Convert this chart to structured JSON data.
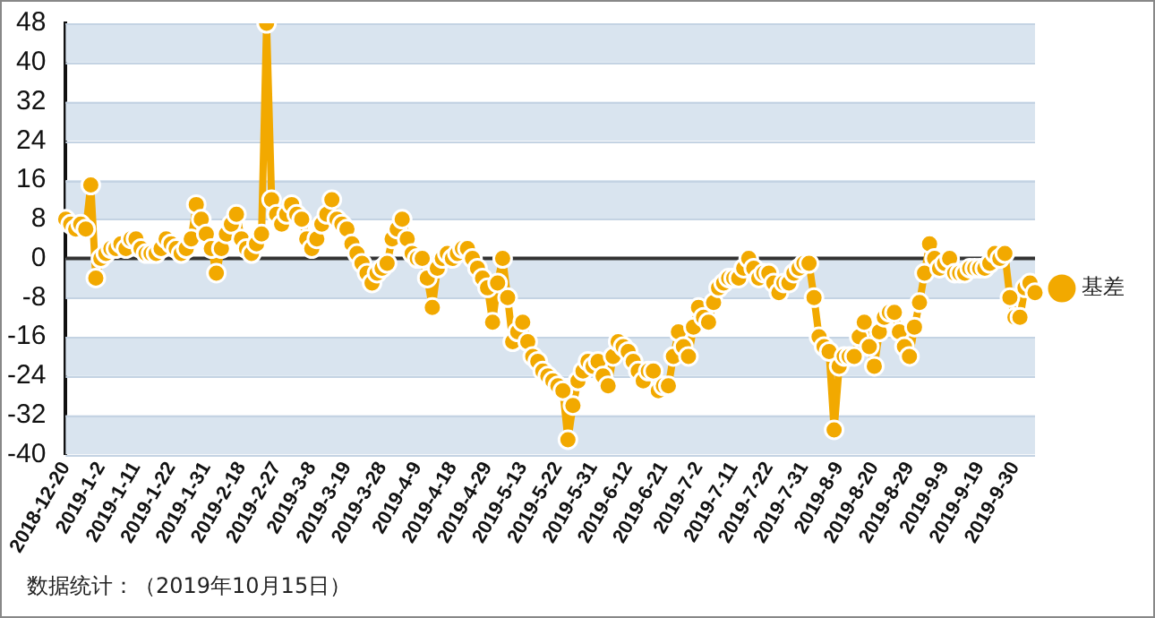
{
  "chart_data": {
    "type": "line",
    "categories": [
      "2018-12-20",
      null,
      null,
      null,
      null,
      null,
      null,
      "2019-1-2",
      null,
      null,
      null,
      null,
      null,
      null,
      "2019-1-11",
      null,
      null,
      null,
      null,
      null,
      null,
      "2019-1-22",
      null,
      null,
      null,
      null,
      null,
      null,
      "2019-1-31",
      null,
      null,
      null,
      null,
      null,
      null,
      "2019-2-18",
      null,
      null,
      null,
      null,
      null,
      null,
      "2019-2-27",
      null,
      null,
      null,
      null,
      null,
      null,
      "2019-3-8",
      null,
      null,
      null,
      null,
      null,
      null,
      "2019-3-19",
      null,
      null,
      null,
      null,
      null,
      null,
      "2019-3-28",
      null,
      null,
      null,
      null,
      null,
      null,
      "2019-4-9",
      null,
      null,
      null,
      null,
      null,
      null,
      "2019-4-18",
      null,
      null,
      null,
      null,
      null,
      null,
      "2019-4-29",
      null,
      null,
      null,
      null,
      null,
      null,
      "2019-5-13",
      null,
      null,
      null,
      null,
      null,
      null,
      "2019-5-22",
      null,
      null,
      null,
      null,
      null,
      null,
      "2019-5-31",
      null,
      null,
      null,
      null,
      null,
      null,
      "2019-6-12",
      null,
      null,
      null,
      null,
      null,
      null,
      "2019-6-21",
      null,
      null,
      null,
      null,
      null,
      null,
      "2019-7-2",
      null,
      null,
      null,
      null,
      null,
      null,
      "2019-7-11",
      null,
      null,
      null,
      null,
      null,
      null,
      "2019-7-22",
      null,
      null,
      null,
      null,
      null,
      null,
      "2019-7-31",
      null,
      null,
      null,
      null,
      null,
      null,
      "2019-8-9",
      null,
      null,
      null,
      null,
      null,
      null,
      "2019-8-20",
      null,
      null,
      null,
      null,
      null,
      null,
      "2019-8-29",
      null,
      null,
      null,
      null,
      null,
      null,
      "2019-9-9",
      null,
      null,
      null,
      null,
      null,
      null,
      "2019-9-19",
      null,
      null,
      null,
      null,
      null,
      null,
      "2019-9-30",
      null,
      null,
      null,
      null
    ],
    "series": [
      {
        "name": "基差",
        "color": "#f2a900",
        "values": [
          8,
          7,
          6,
          7,
          6,
          15,
          -4,
          0,
          1,
          2,
          2,
          3,
          2,
          4,
          4,
          2,
          1,
          1,
          1,
          2,
          4,
          3,
          2,
          1,
          2,
          4,
          11,
          8,
          5,
          2,
          -3,
          2,
          5,
          7,
          9,
          4,
          2,
          1,
          3,
          5,
          48,
          12,
          9,
          7,
          9,
          11,
          9,
          8,
          4,
          2,
          4,
          7,
          9,
          12,
          8,
          7,
          6,
          3,
          1,
          -1,
          -3,
          -5,
          -3,
          -2,
          -1,
          4,
          6,
          8,
          4,
          1,
          0,
          0,
          -4,
          -10,
          -2,
          0,
          1,
          0,
          1,
          2,
          2,
          0,
          -2,
          -4,
          -6,
          -13,
          -5,
          0,
          -8,
          -17,
          -15,
          -13,
          -17,
          -20,
          -21,
          -23,
          -24,
          -25,
          -26,
          -27,
          -37,
          -30,
          -25,
          -23,
          -21,
          -22,
          -21,
          -24,
          -26,
          -20,
          -17,
          -18,
          -19,
          -21,
          -23,
          -25,
          -23,
          -23,
          -27,
          -26,
          -26,
          -20,
          -15,
          -18,
          -20,
          -14,
          -10,
          -12,
          -13,
          -9,
          -6,
          -5,
          -4,
          -4,
          -4,
          -2,
          0,
          -2,
          -4,
          -3,
          -3,
          -5,
          -7,
          -5,
          -5,
          -3,
          -2,
          -1,
          -1,
          -8,
          -16,
          -18,
          -19,
          -35,
          -22,
          -20,
          -20,
          -20,
          -16,
          -13,
          -18,
          -22,
          -15,
          -12,
          -11,
          -11,
          -15,
          -18,
          -20,
          -14,
          -9,
          -3,
          3,
          0,
          -2,
          -1,
          0,
          -3,
          -3,
          -3,
          -2,
          -2,
          -2,
          -2,
          -1,
          1,
          0,
          1,
          -8,
          -12,
          -12,
          -6,
          -5,
          -7
        ]
      }
    ],
    "ylim": [
      -40,
      48
    ],
    "yticks": [
      -40,
      -32,
      -24,
      -16,
      -8,
      0,
      8,
      16,
      24,
      32,
      40,
      48
    ],
    "grid": "y",
    "legend": "right",
    "marker": "circle",
    "line_style": "solid",
    "ref_lines": [
      {
        "axis": "y",
        "value": 0,
        "color": "#333333"
      }
    ],
    "annotations": [
      "数据统计：（2019年10月15日）"
    ]
  }
}
